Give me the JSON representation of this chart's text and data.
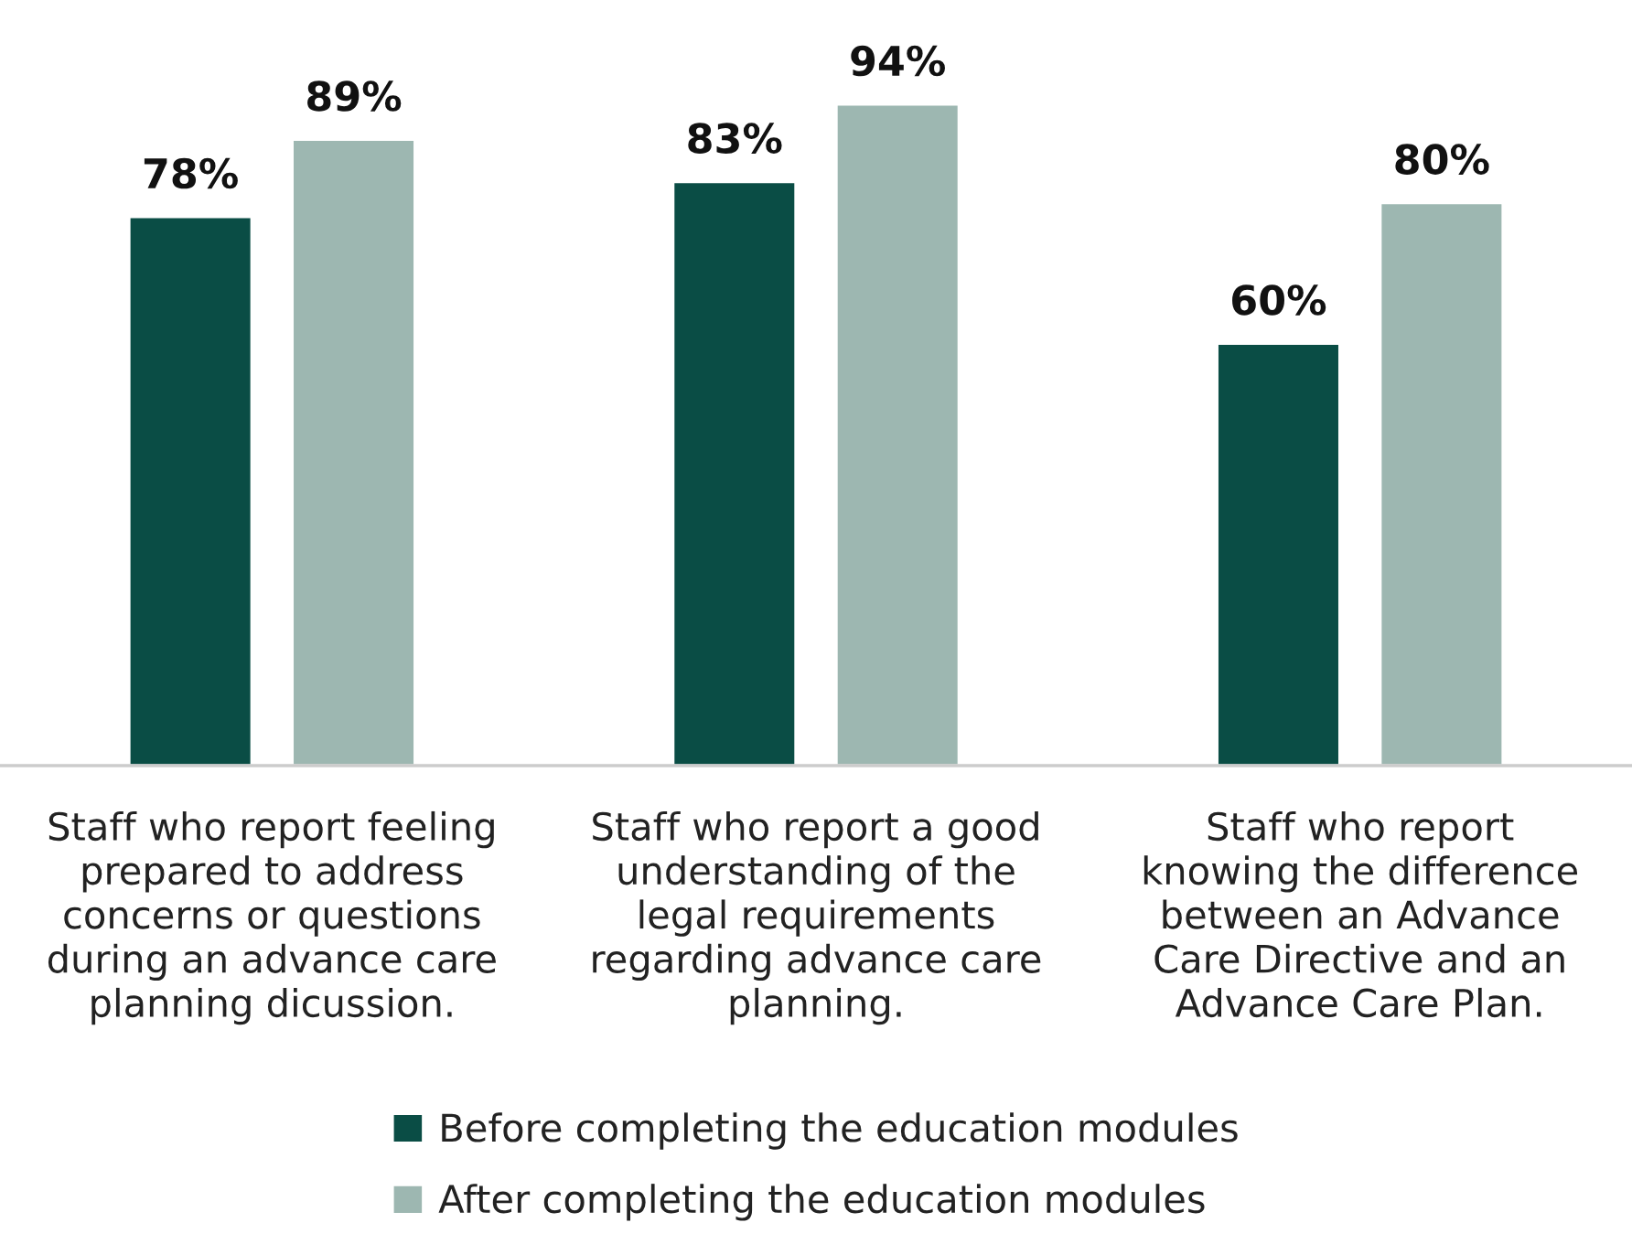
{
  "chart_data": {
    "type": "bar",
    "categories": [
      "Staff who report feeling\nprepared to address\nconcerns or questions\nduring an advance care\nplanning dicussion.",
      "Staff who report a good\nunderstanding of the\nlegal requirements\nregarding advance care\nplanning.",
      "Staff who report\nknowing the difference\nbetween an Advance\nCare Directive and an\nAdvance Care Plan."
    ],
    "series": [
      {
        "name": "Before completing the education modules",
        "color": "#0a4d45",
        "values": [
          78,
          83,
          60
        ],
        "value_labels": [
          "78%",
          "83%",
          "60%"
        ]
      },
      {
        "name": "After completing the education modules",
        "color": "#9db7b1",
        "values": [
          89,
          94,
          80
        ],
        "value_labels": [
          "89%",
          "94%",
          "80%"
        ]
      }
    ],
    "legend": "bottom",
    "grid": false
  }
}
